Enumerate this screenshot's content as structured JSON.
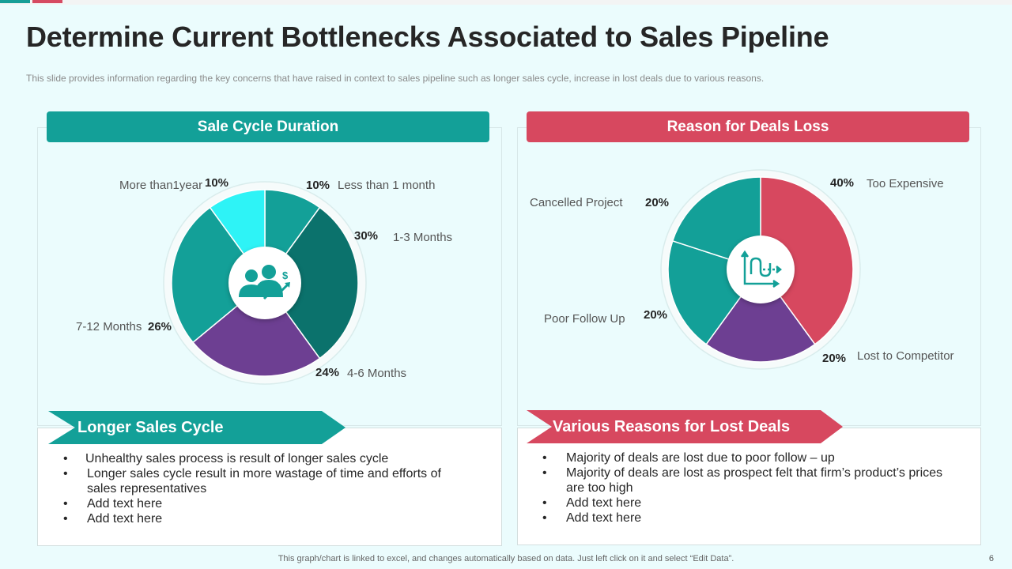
{
  "slide": {
    "title": "Determine Current Bottlenecks Associated to Sales Pipeline",
    "subtitle": "This slide provides  information  regarding  the key concerns that have raised in context to sales pipeline such as longer sales cycle, increase in lost deals due to various  reasons.",
    "footer": "This graph/chart is linked to excel,  and changes automatically based on data. Just left click on it and select “Edit Data”.",
    "page_number": "6"
  },
  "left_panel": {
    "header": "Sale Cycle Duration",
    "icon": "business-people-dollar-growth-icon",
    "ribbon": "Longer Sales Cycle",
    "bullets": [
      "Unhealthy  sales process is result  of longer sales cycle",
      "Longer sales cycle result  in more wastage of time and efforts of sales representatives",
      "Add text here",
      "Add text here"
    ]
  },
  "right_panel": {
    "header": "Reason for Deals Loss",
    "icon": "sales-pipeline-chart-icon",
    "ribbon": "Various Reasons for Lost Deals",
    "bullets": [
      "Majority of deals are lost due to poor follow – up",
      "Majority of deals are lost as prospect felt that firm’s product’s prices are too high",
      "Add text here",
      "Add text here"
    ]
  },
  "chart_data": [
    {
      "type": "pie",
      "title": "Sale Cycle Duration",
      "categories": [
        "Less than  1 month",
        "1-3 Months",
        "4-6 Months",
        "7-12 Months",
        "More than1year"
      ],
      "values": [
        10,
        30,
        24,
        26,
        10
      ],
      "value_labels": [
        "10%",
        "30%",
        "24%",
        "26%",
        "10%"
      ],
      "colors": [
        "#13a098",
        "#0b726c",
        "#6d3f92",
        "#13a098",
        "#2ef3f6"
      ]
    },
    {
      "type": "pie",
      "title": "Reason for Deals Loss",
      "categories": [
        "Too Expensive",
        "Lost to Competitor",
        "Poor Follow Up",
        "Cancelled Project"
      ],
      "values": [
        40,
        20,
        20,
        20
      ],
      "value_labels": [
        "40%",
        "20%",
        "20%",
        "20%"
      ],
      "colors": [
        "#d7485f",
        "#6d3f92",
        "#13a098",
        "#13a098"
      ]
    }
  ],
  "colors": {
    "teal": "#13a098",
    "red": "#d7485f",
    "purple": "#6d3f92",
    "cyan": "#2ef3f6",
    "dark_teal": "#0b726c"
  }
}
